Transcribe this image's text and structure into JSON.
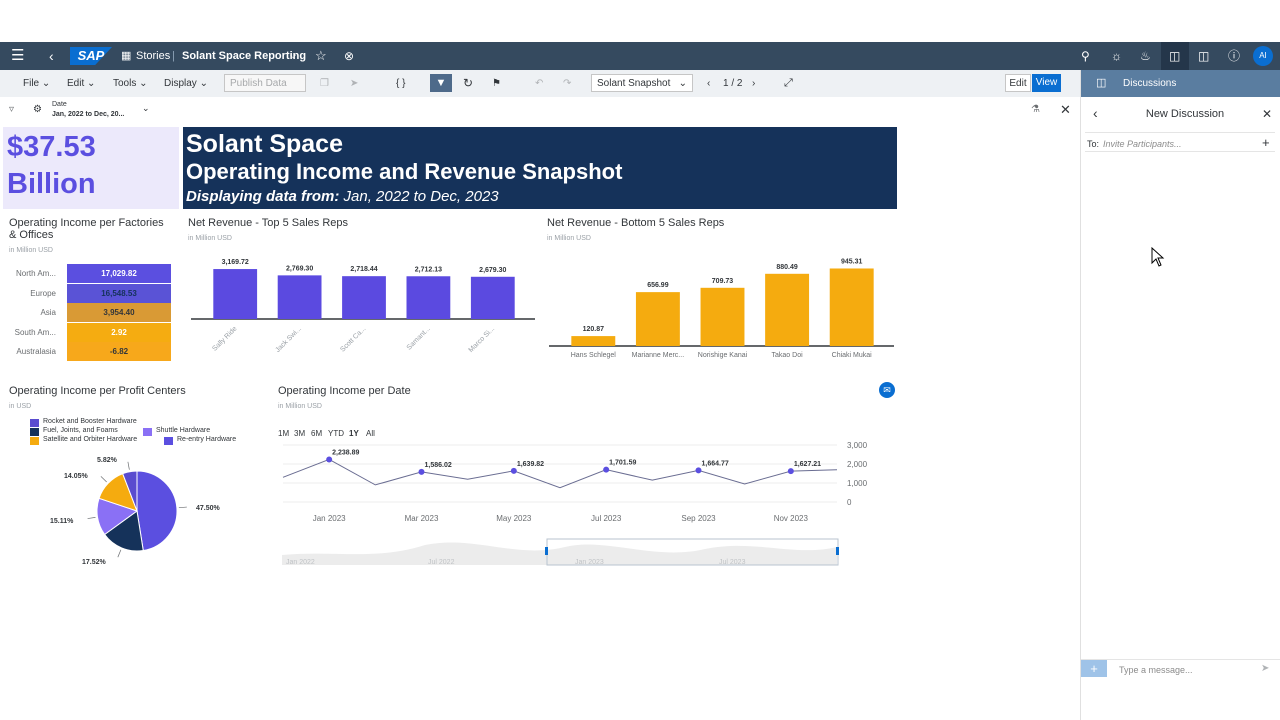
{
  "shell": {
    "stories_label": "Stories",
    "story_title": "Solant Space Reporting",
    "avatar": "AI",
    "logo": "SAP"
  },
  "toolbar": {
    "file": "File",
    "edit": "Edit",
    "tools": "Tools",
    "display": "Display",
    "publish": "Publish Data",
    "version": "Solant Snapshot",
    "page": "1 / 2",
    "edit_mode": "Edit",
    "view_mode": "View"
  },
  "filter": {
    "label": "Date",
    "value": "Jan, 2022 to Dec, 20..."
  },
  "kpi": {
    "line1": "$37.53",
    "line2": "Billion"
  },
  "banner": {
    "line1": "Solant Space",
    "line2": "Operating Income and Revenue Snapshot",
    "line3_prefix": "Displaying data from:",
    "line3_value": " Jan, 2022 to Dec, 2023"
  },
  "heatmap": {
    "title": "Operating Income per Factories & Offices",
    "unit": "in Million USD",
    "rows": [
      {
        "label": "North Am...",
        "value": "17,029.82",
        "color": "#5b4fe0",
        "text": "#ffffff"
      },
      {
        "label": "Europe",
        "value": "16,548.53",
        "color": "#5a53d6",
        "text": "#15325a"
      },
      {
        "label": "Asia",
        "value": "3,954.40",
        "color": "#d99a35",
        "text": "#32363a"
      },
      {
        "label": "South Am...",
        "value": "2.92",
        "color": "#f5ac11",
        "text": "#ffffff"
      },
      {
        "label": "Australasia",
        "value": "-6.82",
        "color": "#f7a81b",
        "text": "#32363a"
      }
    ]
  },
  "top5": {
    "title": "Net Revenue - Top 5 Sales Reps",
    "unit": "in Million USD"
  },
  "bottom5": {
    "title": "Net Revenue - Bottom 5 Sales Reps",
    "unit": "in Million USD"
  },
  "pie": {
    "title": "Operating Income per Profit Centers",
    "unit": "in USD"
  },
  "line": {
    "title": "Operating Income per Date",
    "unit": "in Million USD",
    "ranges": [
      "1M",
      "3M",
      "6M",
      "YTD",
      "1Y",
      "All"
    ],
    "active_range": "1Y",
    "nav_labels": [
      "Jan 2022",
      "Jul 2022",
      "Jan 2023",
      "Jul 2023"
    ]
  },
  "discussion": {
    "header": "Discussions",
    "title": "New Discussion",
    "to_label": "To:",
    "to_placeholder": "Invite Participants...",
    "message_placeholder": "Type a message..."
  },
  "chart_data": [
    {
      "type": "bar",
      "title": "Net Revenue - Top 5 Sales Reps",
      "subtitle": "in Million USD",
      "categories": [
        "Sally Ride",
        "Jack Swi...",
        "Scott Ca...",
        "Samant...",
        "Marco Si..."
      ],
      "values": [
        3169.72,
        2769.3,
        2718.44,
        2712.13,
        2679.3
      ],
      "value_labels": [
        "3,169.72",
        "2,769.30",
        "2,718.44",
        "2,712.13",
        "2,679.30"
      ],
      "color": "#5b4ae0",
      "ylim": [
        0,
        3300
      ]
    },
    {
      "type": "bar",
      "title": "Net Revenue - Bottom 5 Sales Reps",
      "subtitle": "in Million USD",
      "categories": [
        "Hans Schlegel",
        "Marianne Merc...",
        "Norishige Kanai",
        "Takao Doi",
        "Chiaki Mukai"
      ],
      "values": [
        120.87,
        656.99,
        709.73,
        880.49,
        945.31
      ],
      "value_labels": [
        "120.87",
        "656.99",
        "709.73",
        "880.49",
        "945.31"
      ],
      "color": "#f5ab0f",
      "ylim": [
        0,
        1000
      ]
    },
    {
      "type": "pie",
      "title": "Operating Income per Profit Centers",
      "subtitle": "in USD",
      "legend": "top-left",
      "slices": [
        {
          "name": "Re-entry Hardware",
          "value": 47.5,
          "label": "47.50%",
          "color": "#5b4fe0"
        },
        {
          "name": "Fuel, Joints, and Foams",
          "value": 17.52,
          "label": "17.52%",
          "color": "#15325a"
        },
        {
          "name": "Shuttle Hardware",
          "value": 15.11,
          "label": "15.11%",
          "color": "#8a70f5"
        },
        {
          "name": "Satellite and Orbiter Hardware",
          "value": 14.05,
          "label": "14.05%",
          "color": "#f5ab0f"
        },
        {
          "name": "Rocket and Booster Hardware",
          "value": 5.82,
          "label": "5.82%",
          "color": "#5a4ccf"
        }
      ],
      "legend_entries": [
        {
          "name": "Rocket and Booster Hardware",
          "color": "#5a4ccf"
        },
        {
          "name": "Fuel, Joints, and Foams",
          "color": "#15325a"
        },
        {
          "name": "Shuttle Hardware",
          "color": "#8a70f5"
        },
        {
          "name": "Satellite and Orbiter Hardware",
          "color": "#f5ab0f"
        },
        {
          "name": "Re-entry Hardware",
          "color": "#5b4fe0"
        }
      ]
    },
    {
      "type": "line",
      "title": "Operating Income per Date",
      "subtitle": "in Million USD",
      "x": [
        "2022-12",
        "2023-01",
        "2023-02",
        "2023-03",
        "2023-04",
        "2023-05",
        "2023-06",
        "2023-07",
        "2023-08",
        "2023-09",
        "2023-10",
        "2023-11",
        "2023-12"
      ],
      "values": [
        1300,
        2238.89,
        900,
        1586.02,
        1200,
        1639.82,
        750,
        1701.59,
        1150,
        1664.77,
        950,
        1627.21,
        1700
      ],
      "point_labels": [
        null,
        "2,238.89",
        null,
        "1,586.02",
        null,
        "1,639.82",
        null,
        "1,701.59",
        null,
        "1,664.77",
        null,
        "1,627.21",
        null
      ],
      "x_ticks": [
        "Jan 2023",
        "Mar 2023",
        "May 2023",
        "Jul 2023",
        "Sep 2023",
        "Nov 2023"
      ],
      "y_ticks": [
        "3,000",
        "2,000",
        "1,000",
        "0"
      ],
      "ylim": [
        0,
        3000
      ],
      "color": "#5b4fe0"
    }
  ]
}
